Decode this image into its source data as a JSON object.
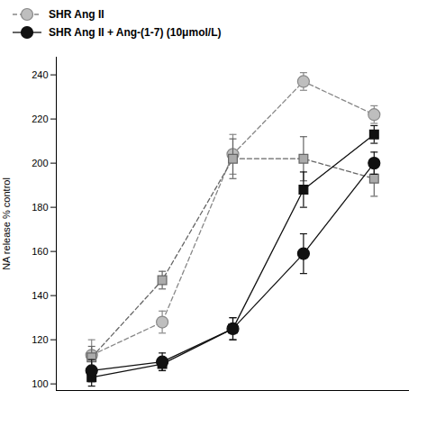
{
  "chart_data": {
    "type": "line",
    "x": [
      1,
      2,
      3,
      4,
      5
    ],
    "xlim": [
      0.5,
      5.5
    ],
    "ylim": [
      97,
      248
    ],
    "yticks": [
      100,
      120,
      140,
      160,
      180,
      200,
      220,
      240
    ],
    "ylabel": "NA release % control",
    "tick_labels": "y",
    "legend": "upper left",
    "series": [
      {
        "name": "SHR Ang II",
        "color": "#888888",
        "marker": "circle",
        "line_style": "dashed",
        "values": [
          113,
          128,
          204,
          237,
          222
        ],
        "yerr": [
          7,
          5,
          9,
          4,
          4
        ]
      },
      {
        "color": "#666666",
        "marker": "square",
        "line_style": "dashed",
        "values": [
          112,
          147,
          202,
          202,
          193
        ],
        "yerr": [
          5,
          4,
          9,
          10,
          8
        ]
      },
      {
        "color": "#111111",
        "marker": "square",
        "line_style": "solid",
        "values": [
          103,
          109,
          125,
          188,
          213
        ],
        "yerr": [
          4,
          3,
          5,
          8,
          4
        ]
      },
      {
        "name": "SHR Ang II + Ang-(1-7) (10μmol/L)",
        "color": "#111111",
        "marker": "circle",
        "line_style": "solid",
        "values": [
          106,
          110,
          125,
          159,
          200
        ],
        "yerr": [
          5,
          4,
          5,
          9,
          5
        ]
      }
    ]
  }
}
